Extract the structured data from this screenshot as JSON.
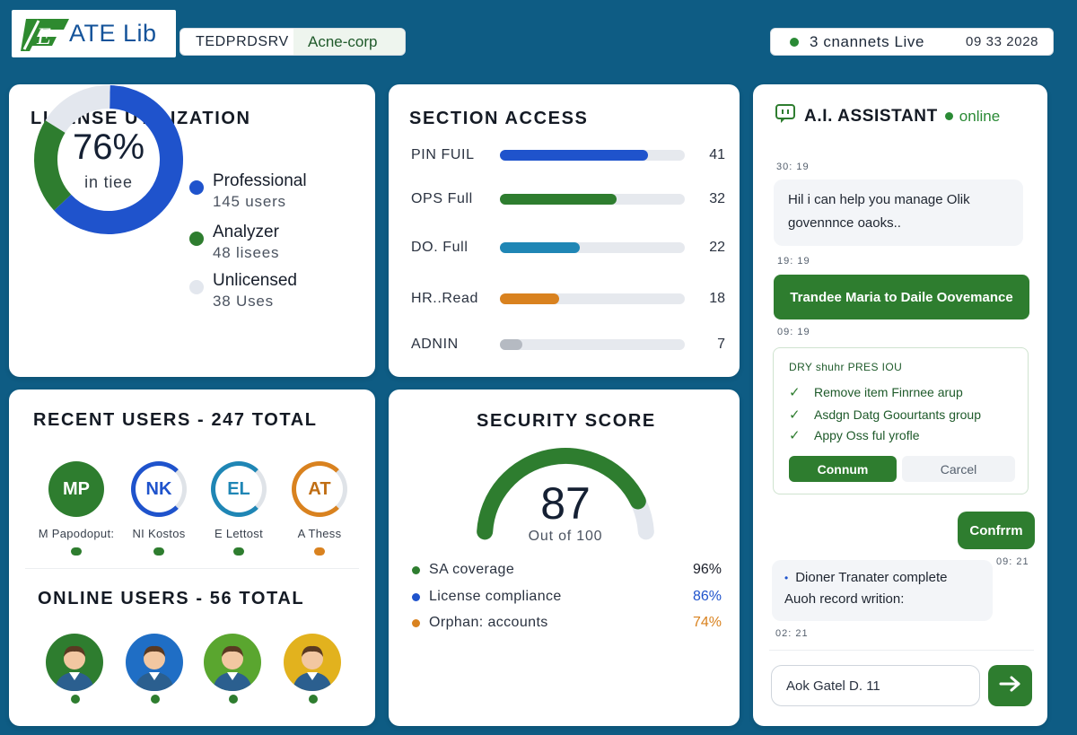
{
  "header": {
    "logo_text": "ATE Lib",
    "logo_mark": "E",
    "server_name": "TEDPRDSRV",
    "tenant": "Acne-corp",
    "channels": "3 cnannets Live",
    "clock": "09 33 2028"
  },
  "license": {
    "title": "LICENSE UTILIZATION",
    "percent": "76%",
    "percent_label": "in tiee",
    "legend": [
      {
        "name": "Professional",
        "count": "145 users",
        "color": "#1f53cc"
      },
      {
        "name": "Analyzer",
        "count": "48 lisees",
        "color": "#2e7d2f"
      },
      {
        "name": "Unlicensed",
        "count": "38 Uses",
        "color": "#e3e7ee"
      }
    ],
    "chart_data": {
      "type": "pie",
      "categories": [
        "Professional",
        "Analyzer",
        "Unlicensed"
      ],
      "values": [
        145,
        48,
        38
      ],
      "colors": [
        "#1f53cc",
        "#2e7d2f",
        "#e3e7ee"
      ]
    }
  },
  "section_access": {
    "title": "SECTION ACCESS",
    "rows": [
      {
        "label": "PIN FUIL",
        "value": "41",
        "fill": 0.8,
        "color": "#1f53cc"
      },
      {
        "label": "OPS Full",
        "value": "32",
        "fill": 0.63,
        "color": "#2e7d2f"
      },
      {
        "label": "DO. Full",
        "value": "22",
        "fill": 0.43,
        "color": "#1f86b5"
      },
      {
        "label": "HR..Read",
        "value": "18",
        "fill": 0.32,
        "color": "#d9821f"
      },
      {
        "label": "ADNIN",
        "value": "7",
        "fill": 0.12,
        "color": "#b5bac2"
      }
    ]
  },
  "users": {
    "recent_title": "RECENT USERS - 247 TOTAL",
    "recent": [
      {
        "initials": "MP",
        "name": "M Papodoput:",
        "style": "solid",
        "color": "#2e7d2f"
      },
      {
        "initials": "NK",
        "name": "NI Kostos",
        "style": "ring",
        "color": "#1f53cc"
      },
      {
        "initials": "EL",
        "name": "E Lettost",
        "style": "ring",
        "color": "#1f86b5"
      },
      {
        "initials": "AT",
        "name": "A Thess",
        "style": "ring",
        "color": "#d9821f"
      }
    ],
    "online_title": "ONLINE USERS - 56 TOTAL",
    "online": [
      {
        "bg": "#2e7d2f",
        "name": "user-1"
      },
      {
        "bg": "#1f6ec5",
        "name": "user-2"
      },
      {
        "bg": "#5aa62f",
        "name": "user-3"
      },
      {
        "bg": "#e2b21e",
        "name": "user-4"
      }
    ]
  },
  "security": {
    "title": "SECURITY SCORE",
    "score": "87",
    "score_sub": "Out of 100",
    "score_value": 87,
    "metrics": [
      {
        "label": "SA coverage",
        "value": "96%",
        "color": "#2e7d2f",
        "value_color": "#1b1f2a"
      },
      {
        "label": "License compliance",
        "value": "86%",
        "color": "#1f53cc",
        "value_color": "#1f53cc"
      },
      {
        "label": "Orphan: accounts",
        "value": "74%",
        "color": "#d9821f",
        "value_color": "#d9821f"
      }
    ]
  },
  "ai": {
    "title": "A.I. ASSISTANT",
    "status": "online",
    "messages": {
      "t1": "30: 19",
      "m1": "Hil i can help you manage Olik govennnce oaoks..",
      "t2": "19: 19",
      "m2": "Trandee Maria to Daile Oovemance",
      "t3": "09: 19",
      "card_title": "DRY shuhr PRES IOU",
      "card_items": [
        "Remove item Finrnee arup",
        "Asdgn Datg Goourtants group",
        "Appy Oss ful yrofle"
      ],
      "card_confirm": "Connum",
      "card_cancel": "Carcel",
      "m3": "Confrrm",
      "t4": "09: 21",
      "m4_line1": "Dioner Tranater complete",
      "m4_line2": "Auoh record writion:",
      "t5": "02: 21"
    },
    "input_value": "Aok Gatel D. 11"
  }
}
